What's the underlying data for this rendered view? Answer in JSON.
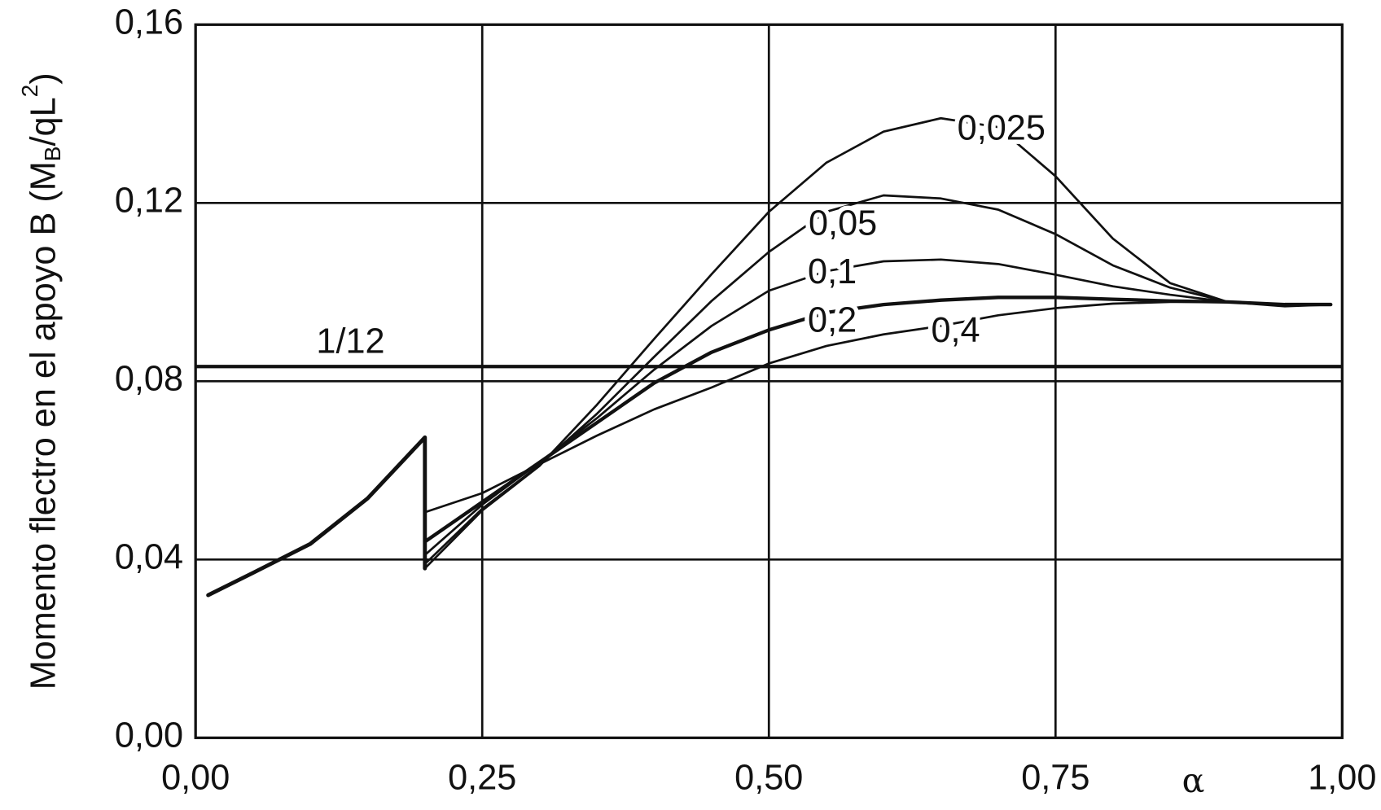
{
  "chart_data": {
    "type": "line",
    "x_label": "α",
    "y_label": {
      "text": "Momento flectro en el apoyo B (M",
      "sub": "B",
      "mid": "/qL",
      "sup": "2",
      "end": ")"
    },
    "xlim": [
      0,
      1
    ],
    "ylim": [
      0,
      0.16
    ],
    "xticks": [
      {
        "value": 0,
        "label": "0,00"
      },
      {
        "value": 0.25,
        "label": "0,25"
      },
      {
        "value": 0.5,
        "label": "0,50"
      },
      {
        "value": 0.75,
        "label": "0,75"
      },
      {
        "value": 1,
        "label": "1,00"
      }
    ],
    "yticks": [
      {
        "value": 0,
        "label": "0,00"
      },
      {
        "value": 0.04,
        "label": "0,04"
      },
      {
        "value": 0.08,
        "label": "0,08"
      },
      {
        "value": 0.12,
        "label": "0,12"
      },
      {
        "value": 0.16,
        "label": "0,16"
      }
    ],
    "grid": true,
    "color": "#111111",
    "reference_line": {
      "label": "1/12",
      "value": 0.0833
    },
    "base_curve": {
      "x": [
        0.011,
        0.05,
        0.1,
        0.15,
        0.2,
        0.2
      ],
      "values": [
        0.032,
        0.037,
        0.0435,
        0.0537,
        0.0674,
        0.038
      ]
    },
    "series": [
      {
        "name": "0,025",
        "x": [
          0.2,
          0.25,
          0.3,
          0.35,
          0.4,
          0.45,
          0.5,
          0.55,
          0.6,
          0.65,
          0.7,
          0.75,
          0.8,
          0.85,
          0.9,
          0.95,
          0.99
        ],
        "values": [
          0.038,
          0.051,
          0.061,
          0.0747,
          0.0895,
          0.104,
          0.118,
          0.129,
          0.136,
          0.139,
          0.137,
          0.126,
          0.112,
          0.102,
          0.0978,
          0.0968,
          0.0972
        ]
      },
      {
        "name": "0,05",
        "x": [
          0.2,
          0.25,
          0.3,
          0.35,
          0.4,
          0.45,
          0.5,
          0.55,
          0.6,
          0.65,
          0.7,
          0.75,
          0.8,
          0.85,
          0.9,
          0.95,
          0.99
        ],
        "values": [
          0.039,
          0.0514,
          0.0612,
          0.0727,
          0.0855,
          0.098,
          0.109,
          0.118,
          0.1217,
          0.121,
          0.1185,
          0.113,
          0.106,
          0.101,
          0.0978,
          0.097,
          0.0972
        ]
      },
      {
        "name": "0,1",
        "x": [
          0.2,
          0.25,
          0.3,
          0.35,
          0.4,
          0.45,
          0.5,
          0.55,
          0.6,
          0.65,
          0.7,
          0.75,
          0.8,
          0.85,
          0.9,
          0.95,
          0.99
        ],
        "values": [
          0.041,
          0.0523,
          0.0618,
          0.0717,
          0.0826,
          0.0924,
          0.1003,
          0.1047,
          0.1069,
          0.1073,
          0.1063,
          0.1039,
          0.1013,
          0.0994,
          0.0978,
          0.0972,
          0.0972
        ]
      },
      {
        "name": "0,2",
        "x": [
          0.2,
          0.25,
          0.3,
          0.35,
          0.4,
          0.45,
          0.5,
          0.55,
          0.6,
          0.65,
          0.7,
          0.75,
          0.8,
          0.85,
          0.9,
          0.95,
          0.99
        ],
        "values": [
          0.044,
          0.0529,
          0.0618,
          0.0707,
          0.0796,
          0.0865,
          0.0915,
          0.0954,
          0.0972,
          0.0982,
          0.0988,
          0.0988,
          0.0984,
          0.098,
          0.0978,
          0.0972,
          0.0972
        ]
      },
      {
        "name": "0,4",
        "x": [
          0.2,
          0.25,
          0.3,
          0.35,
          0.4,
          0.45,
          0.5,
          0.55,
          0.6,
          0.65,
          0.7,
          0.75,
          0.8,
          0.85,
          0.9,
          0.95,
          0.99
        ],
        "values": [
          0.0506,
          0.0549,
          0.0614,
          0.0678,
          0.0737,
          0.0786,
          0.084,
          0.0879,
          0.0905,
          0.0924,
          0.0948,
          0.0964,
          0.0974,
          0.0978,
          0.0978,
          0.0972,
          0.0972
        ]
      }
    ]
  }
}
